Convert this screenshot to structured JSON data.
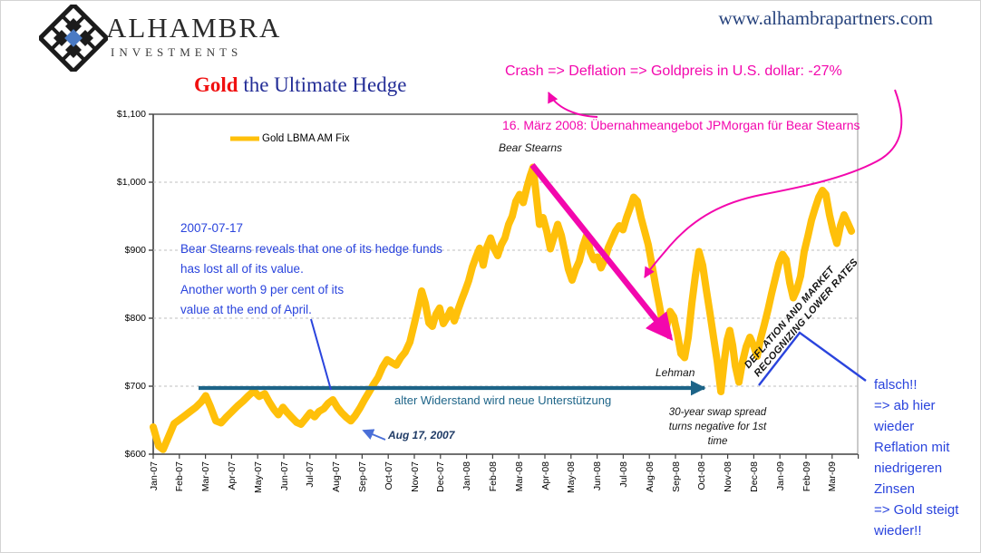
{
  "header": {
    "brand": "ALHAMBRA",
    "brand_sub": "INVESTMENTS",
    "website": "www.alhambrapartners.com"
  },
  "title": {
    "highlight": "Gold",
    "rest": " the Ultimate Hedge"
  },
  "annotations": {
    "crash": "Crash => Deflation => Goldpreis in U.S. dollar: -27%",
    "maerz": "16. März 2008: Übernahmeangebot JPMorgan für Bear Stearns",
    "bear_stearns_label": "Bear Stearns",
    "bear_block": [
      "2007-07-17",
      "Bear Stearns reveals that one of its hedge funds",
      "has lost all of its value.",
      "Another worth 9 per cent of its",
      "value at the end of April."
    ],
    "widerstand": "alter Widerstand wird neue Unterstützung",
    "aug17": "Aug 17, 2007",
    "lehman": "Lehman",
    "swap": [
      "30-year swap spread",
      "turns negative for 1st",
      "time"
    ],
    "deflation": [
      "DEFLATION AND MARKET",
      "RECOGNIZING LOWER RATES"
    ],
    "falsch": [
      "falsch!!",
      "=> ab hier",
      "wieder",
      "Reflation mit",
      "niedrigeren",
      "Zinsen",
      "=> Gold steigt",
      "wieder!!"
    ]
  },
  "colors": {
    "gold": "#FFC00A",
    "magenta": "#F307AD",
    "teal": "#1D6488",
    "blue_annotation": "#2A44DD",
    "navy": "#26427C",
    "title_blue": "#222C96",
    "title_red": "#F01010",
    "gridline": "#BFBFBF",
    "axis": "#404040"
  },
  "chart_data": {
    "type": "line",
    "title": "Gold the Ultimate Hedge",
    "legend": [
      "Gold LBMA AM Fix"
    ],
    "legend_position": "top-left-inside",
    "grid": "dashed-horizontal",
    "ylim": [
      600,
      1100
    ],
    "y_ticks": [
      "$1,100",
      "$1,000",
      "$900",
      "$800",
      "$700",
      "$600"
    ],
    "x_categories": [
      "Jan-07",
      "Feb-07",
      "Mar-07",
      "Apr-07",
      "May-07",
      "Jun-07",
      "Jul-07",
      "Aug-07",
      "Sep-07",
      "Oct-07",
      "Nov-07",
      "Dec-07",
      "Jan-08",
      "Feb-08",
      "Mar-08",
      "Apr-08",
      "May-08",
      "Jun-08",
      "Jul-08",
      "Aug-08",
      "Sep-08",
      "Oct-08",
      "Nov-08",
      "Dec-08",
      "Jan-09",
      "Feb-09",
      "Mar-09"
    ],
    "series": [
      {
        "name": "Gold LBMA AM Fix",
        "color": "#FFC00A",
        "units": "USD per oz",
        "points_month_value": [
          [
            0,
            640
          ],
          [
            0.21,
            612
          ],
          [
            0.38,
            607
          ],
          [
            0.59,
            626
          ],
          [
            0.8,
            645
          ],
          [
            1.01,
            651
          ],
          [
            1.22,
            657
          ],
          [
            1.42,
            663
          ],
          [
            1.63,
            669
          ],
          [
            1.84,
            677
          ],
          [
            2.01,
            686
          ],
          [
            2.19,
            670
          ],
          [
            2.4,
            649
          ],
          [
            2.6,
            646
          ],
          [
            2.81,
            655
          ],
          [
            3.02,
            663
          ],
          [
            3.23,
            671
          ],
          [
            3.44,
            678
          ],
          [
            3.65,
            686
          ],
          [
            3.85,
            693
          ],
          [
            4.06,
            685
          ],
          [
            4.27,
            689
          ],
          [
            4.44,
            677
          ],
          [
            4.62,
            666
          ],
          [
            4.79,
            658
          ],
          [
            4.97,
            669
          ],
          [
            5.14,
            661
          ],
          [
            5.31,
            654
          ],
          [
            5.49,
            647
          ],
          [
            5.66,
            644
          ],
          [
            5.83,
            652
          ],
          [
            6.01,
            661
          ],
          [
            6.18,
            655
          ],
          [
            6.35,
            663
          ],
          [
            6.53,
            667
          ],
          [
            6.7,
            675
          ],
          [
            6.88,
            680
          ],
          [
            7.05,
            669
          ],
          [
            7.22,
            661
          ],
          [
            7.4,
            654
          ],
          [
            7.57,
            649
          ],
          [
            7.74,
            657
          ],
          [
            7.92,
            668
          ],
          [
            8.09,
            680
          ],
          [
            8.26,
            691
          ],
          [
            8.44,
            703
          ],
          [
            8.61,
            713
          ],
          [
            8.78,
            728
          ],
          [
            8.96,
            739
          ],
          [
            9.13,
            735
          ],
          [
            9.31,
            731
          ],
          [
            9.48,
            742
          ],
          [
            9.65,
            750
          ],
          [
            9.83,
            765
          ],
          [
            10.0,
            792
          ],
          [
            10.14,
            815
          ],
          [
            10.28,
            840
          ],
          [
            10.42,
            822
          ],
          [
            10.56,
            793
          ],
          [
            10.69,
            788
          ],
          [
            10.83,
            806
          ],
          [
            10.97,
            815
          ],
          [
            11.11,
            792
          ],
          [
            11.25,
            801
          ],
          [
            11.39,
            812
          ],
          [
            11.53,
            796
          ],
          [
            11.67,
            812
          ],
          [
            11.81,
            827
          ],
          [
            11.94,
            840
          ],
          [
            12.08,
            855
          ],
          [
            12.22,
            875
          ],
          [
            12.36,
            890
          ],
          [
            12.5,
            903
          ],
          [
            12.64,
            878
          ],
          [
            12.78,
            905
          ],
          [
            12.92,
            918
          ],
          [
            13.06,
            902
          ],
          [
            13.19,
            892
          ],
          [
            13.33,
            908
          ],
          [
            13.47,
            918
          ],
          [
            13.61,
            938
          ],
          [
            13.75,
            950
          ],
          [
            13.89,
            972
          ],
          [
            14.03,
            982
          ],
          [
            14.17,
            970
          ],
          [
            14.31,
            992
          ],
          [
            14.44,
            1010
          ],
          [
            14.55,
            1022
          ],
          [
            14.65,
            988
          ],
          [
            14.79,
            938
          ],
          [
            14.93,
            948
          ],
          [
            15.07,
            928
          ],
          [
            15.21,
            902
          ],
          [
            15.35,
            920
          ],
          [
            15.49,
            938
          ],
          [
            15.63,
            922
          ],
          [
            15.76,
            898
          ],
          [
            15.9,
            872
          ],
          [
            16.04,
            856
          ],
          [
            16.18,
            872
          ],
          [
            16.32,
            884
          ],
          [
            16.46,
            906
          ],
          [
            16.6,
            922
          ],
          [
            16.74,
            898
          ],
          [
            16.88,
            886
          ],
          [
            17.01,
            890
          ],
          [
            17.15,
            874
          ],
          [
            17.29,
            886
          ],
          [
            17.43,
            904
          ],
          [
            17.57,
            916
          ],
          [
            17.71,
            928
          ],
          [
            17.85,
            936
          ],
          [
            17.99,
            930
          ],
          [
            18.13,
            948
          ],
          [
            18.26,
            962
          ],
          [
            18.4,
            978
          ],
          [
            18.54,
            972
          ],
          [
            18.68,
            948
          ],
          [
            18.82,
            928
          ],
          [
            18.96,
            908
          ],
          [
            19.1,
            878
          ],
          [
            19.24,
            848
          ],
          [
            19.38,
            820
          ],
          [
            19.51,
            792
          ],
          [
            19.65,
            786
          ],
          [
            19.79,
            810
          ],
          [
            19.93,
            802
          ],
          [
            20.07,
            778
          ],
          [
            20.21,
            748
          ],
          [
            20.35,
            742
          ],
          [
            20.49,
            772
          ],
          [
            20.63,
            822
          ],
          [
            20.76,
            862
          ],
          [
            20.9,
            898
          ],
          [
            21.04,
            878
          ],
          [
            21.18,
            842
          ],
          [
            21.32,
            808
          ],
          [
            21.46,
            772
          ],
          [
            21.6,
            736
          ],
          [
            21.74,
            692
          ],
          [
            21.88,
            740
          ],
          [
            21.98,
            768
          ],
          [
            22.08,
            782
          ],
          [
            22.19,
            760
          ],
          [
            22.29,
            730
          ],
          [
            22.43,
            706
          ],
          [
            22.57,
            736
          ],
          [
            22.71,
            758
          ],
          [
            22.85,
            772
          ],
          [
            22.99,
            760
          ],
          [
            23.13,
            744
          ],
          [
            23.26,
            770
          ],
          [
            23.4,
            790
          ],
          [
            23.54,
            812
          ],
          [
            23.68,
            836
          ],
          [
            23.82,
            858
          ],
          [
            23.96,
            880
          ],
          [
            24.1,
            894
          ],
          [
            24.24,
            886
          ],
          [
            24.38,
            852
          ],
          [
            24.51,
            830
          ],
          [
            24.65,
            842
          ],
          [
            24.79,
            862
          ],
          [
            24.93,
            898
          ],
          [
            25.07,
            920
          ],
          [
            25.21,
            944
          ],
          [
            25.35,
            962
          ],
          [
            25.49,
            978
          ],
          [
            25.63,
            988
          ],
          [
            25.76,
            982
          ],
          [
            25.9,
            952
          ],
          [
            26.04,
            928
          ],
          [
            26.18,
            910
          ],
          [
            26.32,
            936
          ],
          [
            26.46,
            952
          ],
          [
            26.6,
            940
          ],
          [
            26.74,
            928
          ]
        ],
        "key_events": [
          {
            "label": "Aug 17, 2007",
            "value": 650
          },
          {
            "label": "Bear Stearns peak 16. März 2008",
            "value": 1022
          },
          {
            "label": "Lehman",
            "value": 745
          },
          {
            "label": "Oct 2008 low",
            "value": 692
          },
          {
            "label": "Feb 2009 peak",
            "value": 988
          }
        ]
      }
    ],
    "support_line_value": 700
  }
}
